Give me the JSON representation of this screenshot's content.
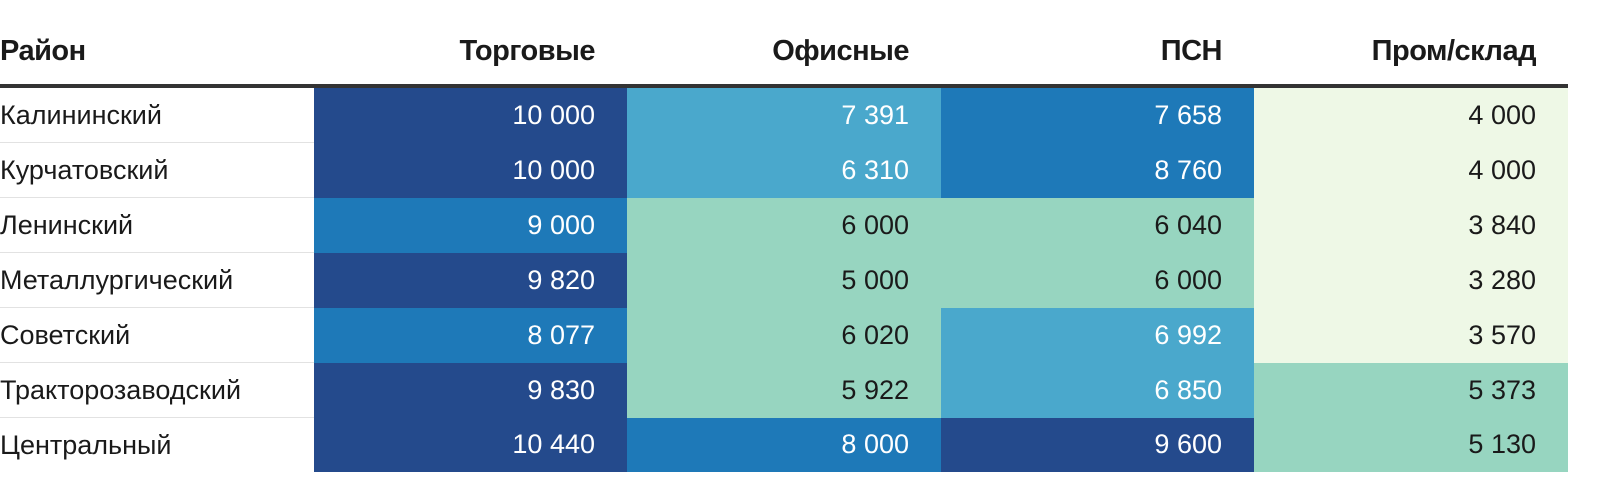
{
  "chart_data": {
    "type": "heatmap",
    "columns": [
      "Район",
      "Торговые",
      "Офисные",
      "ПСН",
      "Пром/склад"
    ],
    "rows": [
      {
        "district": "Калининский",
        "values": [
          10000,
          7391,
          7658,
          4000
        ],
        "display": [
          "10 000",
          "7 391",
          "7 658",
          "4 000"
        ]
      },
      {
        "district": "Курчатовский",
        "values": [
          10000,
          6310,
          8760,
          4000
        ],
        "display": [
          "10 000",
          "6 310",
          "8 760",
          "4 000"
        ]
      },
      {
        "district": "Ленинский",
        "values": [
          9000,
          6000,
          6040,
          3840
        ],
        "display": [
          "9 000",
          "6 000",
          "6 040",
          "3 840"
        ]
      },
      {
        "district": "Металлургический",
        "values": [
          9820,
          5000,
          6000,
          3280
        ],
        "display": [
          "9 820",
          "5 000",
          "6 000",
          "3 280"
        ]
      },
      {
        "district": "Советский",
        "values": [
          8077,
          6020,
          6992,
          3570
        ],
        "display": [
          "8 077",
          "6 020",
          "6 992",
          "3 570"
        ]
      },
      {
        "district": "Тракторозаводский",
        "values": [
          9830,
          5922,
          6850,
          5373
        ],
        "display": [
          "9 830",
          "5 922",
          "6 850",
          "5 373"
        ]
      },
      {
        "district": "Центральный",
        "values": [
          10440,
          8000,
          9600,
          5130
        ],
        "display": [
          "10 440",
          "8 000",
          "9 600",
          "5 130"
        ]
      }
    ],
    "color_scale": [
      {
        "min": 0,
        "color": "#eef8e6",
        "text": "#1a1a1a"
      },
      {
        "min": 5000,
        "color": "#97d5c0",
        "text": "#1a1a1a"
      },
      {
        "min": 6300,
        "color": "#4aa8cc",
        "text": "#ffffff"
      },
      {
        "min": 7600,
        "color": "#1e79b8",
        "text": "#ffffff"
      },
      {
        "min": 9600,
        "color": "#244a8c",
        "text": "#ffffff"
      }
    ]
  }
}
